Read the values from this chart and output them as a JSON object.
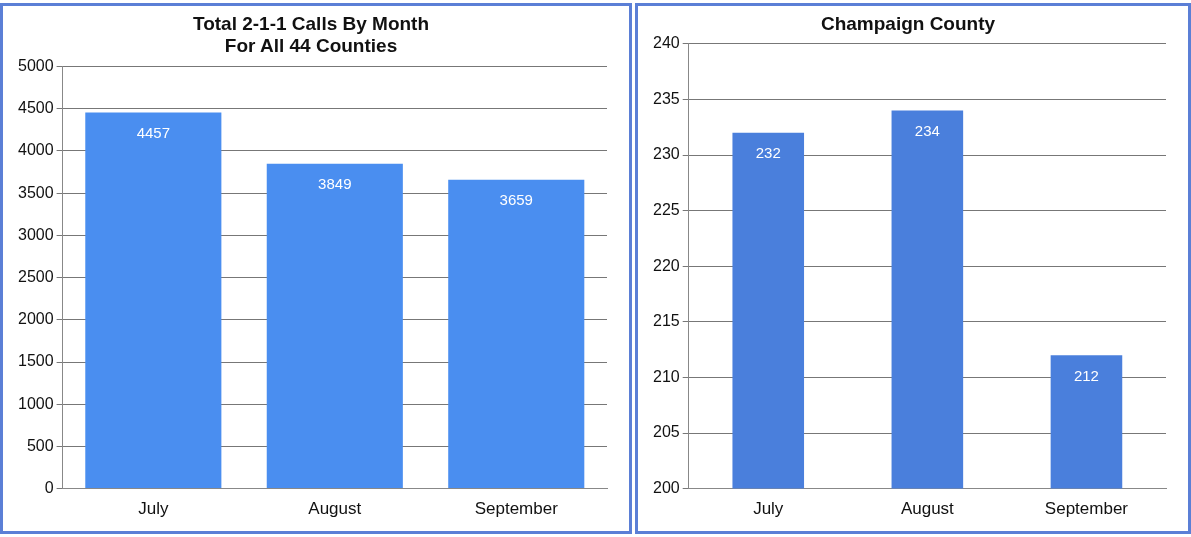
{
  "chart_data": [
    {
      "type": "bar",
      "title": "Total 2-1-1 Calls By Month\nFor All 44 Counties",
      "categories": [
        "July",
        "August",
        "September"
      ],
      "values": [
        4457,
        3849,
        3659
      ],
      "color": "#4a8ef0",
      "ylim": [
        0,
        5000
      ],
      "yticks": [
        0,
        500,
        1000,
        1500,
        2000,
        2500,
        3000,
        3500,
        4000,
        4500,
        5000
      ],
      "grid": "y",
      "data_labels": true
    },
    {
      "type": "bar",
      "title": "Champaign County",
      "categories": [
        "July",
        "August",
        "September"
      ],
      "values": [
        232,
        234,
        212
      ],
      "color": "#4a7fdc",
      "ylim": [
        200,
        240
      ],
      "yticks": [
        200,
        205,
        210,
        215,
        220,
        225,
        230,
        235,
        240
      ],
      "grid": "y",
      "data_labels": true
    }
  ]
}
